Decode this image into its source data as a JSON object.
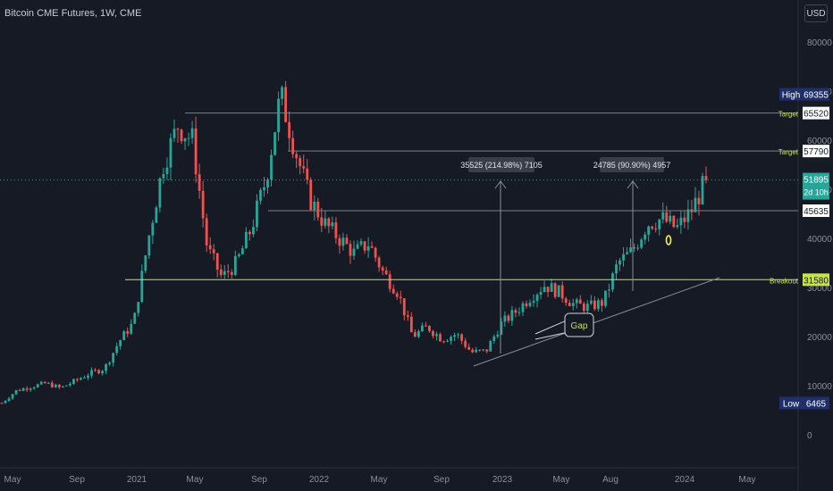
{
  "header": {
    "title": "Bitcoin CME Futures, 1W, CME",
    "currency_button": "USD"
  },
  "chart_data": {
    "type": "candlestick",
    "y_axis": {
      "ticks": [
        0,
        10000,
        20000,
        30000,
        40000,
        50000,
        60000,
        70000,
        80000
      ],
      "range": [
        -4000,
        88000
      ]
    },
    "x_axis": {
      "labels": [
        "May",
        "Sep",
        "2021",
        "May",
        "Sep",
        "2022",
        "May",
        "Sep",
        "2023",
        "May",
        "Aug",
        "2024",
        "May"
      ]
    },
    "price_labels": [
      {
        "text": "High",
        "value": "69355",
        "level": 69355,
        "style": "navy"
      },
      {
        "text": "Target",
        "value": "65520",
        "level": 65520,
        "style": "white"
      },
      {
        "text": "Target",
        "value": "57790",
        "level": 57790,
        "style": "white"
      },
      {
        "text": "",
        "value": "51895",
        "sub": "2d 10h",
        "level": 51895,
        "style": "teal"
      },
      {
        "text": "",
        "value": "45635",
        "level": 45635,
        "style": "white"
      },
      {
        "text": "Breakout",
        "value": "31580",
        "level": 31580,
        "style": "yellow"
      },
      {
        "text": "Low",
        "value": "6465",
        "level": 6465,
        "style": "navy"
      }
    ],
    "measurements": [
      {
        "label": "35525 (214.98%) 7105"
      },
      {
        "label": "24785 (90.90%) 4957"
      }
    ],
    "annotations": {
      "gap": "Gap"
    },
    "colors": {
      "up": "#26a69a",
      "down": "#ef5350",
      "breakout": "#c6e34e",
      "teal": "#26a69a",
      "navy": "#1e2f6b",
      "background": "#161a25"
    },
    "price_path": [
      6465,
      9000,
      9800,
      10500,
      9500,
      11000,
      12500,
      13500,
      19000,
      23000,
      40000,
      55000,
      63000,
      60000,
      38000,
      32000,
      35000,
      42000,
      52000,
      69355,
      58000,
      48000,
      43000,
      40000,
      37000,
      39000,
      33000,
      29000,
      20000,
      22000,
      19500,
      20500,
      16800,
      17000,
      22500,
      25000,
      28000,
      30500,
      29000,
      26500,
      26000,
      27000,
      35000,
      37500,
      43000,
      44000,
      42000,
      45635,
      51895
    ]
  }
}
